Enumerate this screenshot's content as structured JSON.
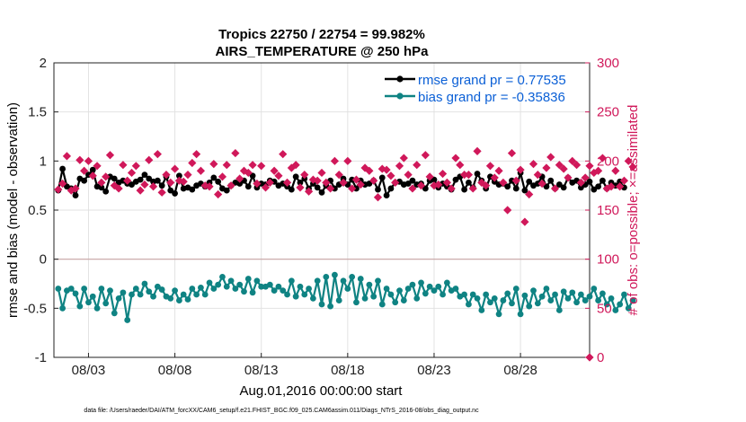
{
  "chart_data": {
    "type": "line",
    "title": "Tropics 22750 / 22754 = 99.982%",
    "subtitle": "AIRS_TEMPERATURE @ 250 hPa",
    "xlabel": "Aug.01,2016 00:00:00 start",
    "ylabel": "rmse and bias (model - observation)",
    "ylabel_right": "# of obs: o=possible; ×=assimilated",
    "footnote": "data file: /Users/raeder/DAI/ATM_forcXX/CAM6_setup/f.e21.FHIST_BGC.f09_025.CAM6assim.011/Diags_NTrS_2016-08/obs_diag_output.nc",
    "xlim": [
      1.0,
      32.0
    ],
    "ylim": [
      -1,
      2
    ],
    "ylim_right": [
      0,
      300
    ],
    "yticks": [
      {
        "value": -1,
        "label": "-1"
      },
      {
        "value": -0.5,
        "label": "-0.5"
      },
      {
        "value": 0,
        "label": "0"
      },
      {
        "value": 0.5,
        "label": "0.5"
      },
      {
        "value": 1,
        "label": "1"
      },
      {
        "value": 1.5,
        "label": "1.5"
      },
      {
        "value": 2,
        "label": "2"
      }
    ],
    "yticks_right": [
      {
        "value": 0,
        "label": "0"
      },
      {
        "value": 50,
        "label": "50"
      },
      {
        "value": 100,
        "label": "100"
      },
      {
        "value": 150,
        "label": "150"
      },
      {
        "value": 200,
        "label": "200"
      },
      {
        "value": 250,
        "label": "250"
      },
      {
        "value": 300,
        "label": "300"
      }
    ],
    "xticks": [
      {
        "value": 3,
        "label": "08/03"
      },
      {
        "value": 8,
        "label": "08/08"
      },
      {
        "value": 13,
        "label": "08/13"
      },
      {
        "value": 18,
        "label": "08/18"
      },
      {
        "value": 23,
        "label": "08/23"
      },
      {
        "value": 28,
        "label": "08/28"
      }
    ],
    "grid": true,
    "legend_position": "top-right",
    "x_start": 1.25,
    "x_step": 0.25,
    "series": [
      {
        "name": "rmse",
        "legend": "rmse grand pr = 0.77535",
        "color": "#000000",
        "legend_text_color": "#0a5fd6",
        "marker": "circle",
        "values": [
          0.7,
          0.92,
          0.74,
          0.72,
          0.65,
          0.82,
          0.8,
          0.86,
          0.91,
          0.74,
          0.73,
          0.69,
          0.84,
          0.82,
          0.78,
          0.8,
          0.77,
          0.76,
          0.79,
          0.81,
          0.86,
          0.82,
          0.79,
          0.8,
          0.75,
          0.84,
          0.7,
          0.67,
          0.85,
          0.72,
          0.73,
          0.71,
          0.75,
          0.77,
          0.74,
          0.78,
          0.83,
          0.79,
          0.72,
          0.7,
          0.75,
          0.78,
          0.77,
          0.8,
          0.74,
          0.85,
          0.73,
          0.77,
          0.76,
          0.8,
          0.79,
          0.75,
          0.77,
          0.74,
          0.71,
          0.84,
          0.78,
          0.82,
          0.72,
          0.77,
          0.73,
          0.68,
          0.75,
          0.8,
          0.72,
          0.76,
          0.82,
          0.76,
          0.81,
          0.72,
          0.8,
          0.76,
          0.77,
          0.8,
          0.71,
          0.83,
          0.65,
          0.72,
          0.78,
          0.79,
          0.76,
          0.77,
          0.8,
          0.76,
          0.77,
          0.72,
          0.8,
          0.81,
          0.73,
          0.77,
          0.74,
          0.71,
          0.81,
          0.84,
          0.71,
          0.78,
          0.73,
          0.87,
          0.8,
          0.72,
          0.84,
          0.79,
          0.76,
          0.77,
          0.74,
          0.8,
          0.72,
          0.88,
          0.7,
          0.79,
          0.75,
          0.77,
          0.84,
          0.74,
          0.8,
          0.72,
          0.76,
          0.73,
          0.83,
          0.78,
          0.8,
          0.73,
          0.76,
          0.79,
          0.71,
          0.74,
          0.8,
          0.72,
          0.78,
          0.75,
          0.79,
          0.73
        ]
      },
      {
        "name": "bias",
        "legend": "bias grand pr = -0.35836",
        "color": "#0f8383",
        "legend_text_color": "#0a5fd6",
        "marker": "circle",
        "values": [
          -0.3,
          -0.5,
          -0.32,
          -0.3,
          -0.35,
          -0.48,
          -0.3,
          -0.44,
          -0.38,
          -0.5,
          -0.3,
          -0.45,
          -0.32,
          -0.55,
          -0.4,
          -0.34,
          -0.62,
          -0.36,
          -0.3,
          -0.36,
          -0.25,
          -0.33,
          -0.38,
          -0.28,
          -0.31,
          -0.38,
          -0.4,
          -0.32,
          -0.42,
          -0.36,
          -0.41,
          -0.3,
          -0.36,
          -0.29,
          -0.36,
          -0.24,
          -0.3,
          -0.26,
          -0.18,
          -0.28,
          -0.22,
          -0.3,
          -0.26,
          -0.33,
          -0.2,
          -0.34,
          -0.22,
          -0.28,
          -0.28,
          -0.26,
          -0.32,
          -0.28,
          -0.32,
          -0.36,
          -0.22,
          -0.38,
          -0.28,
          -0.36,
          -0.3,
          -0.4,
          -0.22,
          -0.46,
          -0.18,
          -0.48,
          -0.16,
          -0.42,
          -0.22,
          -0.3,
          -0.18,
          -0.44,
          -0.2,
          -0.4,
          -0.26,
          -0.38,
          -0.22,
          -0.46,
          -0.3,
          -0.36,
          -0.44,
          -0.32,
          -0.42,
          -0.3,
          -0.26,
          -0.4,
          -0.24,
          -0.35,
          -0.28,
          -0.32,
          -0.28,
          -0.36,
          -0.24,
          -0.32,
          -0.3,
          -0.38,
          -0.36,
          -0.46,
          -0.36,
          -0.4,
          -0.52,
          -0.36,
          -0.44,
          -0.4,
          -0.56,
          -0.42,
          -0.35,
          -0.45,
          -0.3,
          -0.56,
          -0.37,
          -0.48,
          -0.32,
          -0.45,
          -0.38,
          -0.3,
          -0.42,
          -0.36,
          -0.52,
          -0.33,
          -0.4,
          -0.34,
          -0.44,
          -0.36,
          -0.42,
          -0.38,
          -0.3,
          -0.42,
          -0.35,
          -0.46,
          -0.4,
          -0.52,
          -0.46,
          -0.36,
          -0.5,
          -0.42
        ]
      },
      {
        "name": "nobs",
        "axis": "right",
        "color": "#d0185a",
        "marker": "cross",
        "values": [
          171,
          177,
          205,
          170,
          172,
          201,
          190,
          200,
          185,
          195,
          178,
          184,
          206,
          175,
          172,
          196,
          180,
          188,
          195,
          170,
          176,
          201,
          174,
          207,
          168,
          186,
          178,
          192,
          180,
          179,
          186,
          198,
          207,
          190,
          175,
          174,
          197,
          166,
          184,
          196,
          175,
          208,
          182,
          190,
          188,
          196,
          177,
          195,
          173,
          178,
          190,
          185,
          207,
          178,
          193,
          196,
          173,
          186,
          169,
          181,
          180,
          188,
          178,
          172,
          200,
          186,
          178,
          200,
          172,
          181,
          176,
          193,
          190,
          180,
          163,
          192,
          191,
          185,
          178,
          195,
          203,
          186,
          172,
          196,
          175,
          206,
          184,
          175,
          176,
          187,
          178,
          172,
          203,
          196,
          186,
          186,
          172,
          210,
          178,
          175,
          195,
          183,
          190,
          178,
          150,
          208,
          180,
          191,
          138,
          166,
          197,
          186,
          177,
          193,
          204,
          172,
          196,
          192,
          183,
          200,
          196,
          178,
          183,
          195,
          188,
          190,
          203,
          172,
          174,
          190,
          174,
          180,
          200,
          194
        ]
      }
    ],
    "right_axis_extra": [
      {
        "x": 32.0,
        "value": 0,
        "marker": "cross"
      }
    ]
  }
}
